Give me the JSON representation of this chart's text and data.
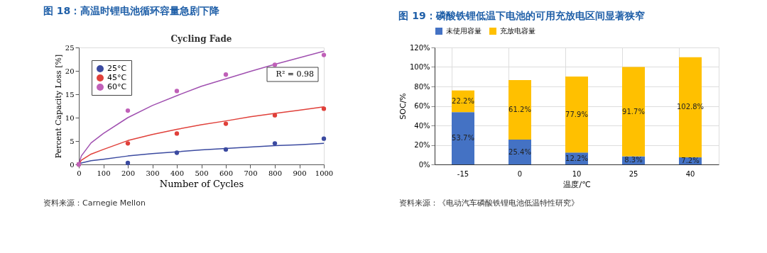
{
  "chart_data": [
    {
      "type": "scatter",
      "title": "图 18：高温时锂电池循环容量急剧下降",
      "subtitle": "Cycling Fade",
      "xlabel": "Number of Cycles",
      "ylabel": "Percent Capacity Loss [%]",
      "x": [
        0,
        200,
        400,
        600,
        800,
        1000
      ],
      "series": [
        {
          "name": "25°C",
          "color": "#3b4aa0",
          "values": [
            0,
            0.3,
            2.5,
            3.2,
            4.5,
            5.5
          ]
        },
        {
          "name": "45°C",
          "color": "#e0403a",
          "values": [
            0,
            4.5,
            6.6,
            8.7,
            10.5,
            11.9
          ]
        },
        {
          "name": "60°C",
          "color": "#c060b8",
          "values": [
            0,
            11.5,
            15.7,
            19.2,
            21.3,
            23.4
          ]
        },
        {
          "type": "line",
          "marker": "none",
          "color": "#3b4aa0",
          "x": [
            0,
            10,
            50,
            100,
            200,
            300,
            400,
            500,
            600,
            700,
            800,
            900,
            1000
          ],
          "values": [
            0,
            0.3,
            0.8,
            1.1,
            1.8,
            2.3,
            2.7,
            3.1,
            3.4,
            3.7,
            4.0,
            4.2,
            4.5
          ]
        },
        {
          "type": "line",
          "marker": "none",
          "color": "#e0403a",
          "x": [
            0,
            10,
            50,
            100,
            200,
            300,
            400,
            500,
            600,
            700,
            800,
            900,
            1000
          ],
          "values": [
            0,
            0.9,
            2.2,
            3.2,
            5.1,
            6.4,
            7.5,
            8.5,
            9.3,
            10.2,
            10.9,
            11.6,
            12.3
          ]
        },
        {
          "type": "line",
          "marker": "none",
          "color": "#a050b0",
          "x": [
            0,
            10,
            50,
            100,
            200,
            300,
            400,
            500,
            600,
            700,
            800,
            900,
            1000
          ],
          "values": [
            0,
            1.8,
            4.6,
            6.6,
            10.0,
            12.6,
            14.7,
            16.7,
            18.3,
            19.9,
            21.4,
            22.8,
            24.2
          ]
        }
      ],
      "xlim": [
        0,
        1000
      ],
      "xticks": [
        0,
        100,
        200,
        300,
        400,
        500,
        600,
        700,
        800,
        900,
        1000
      ],
      "ylim": [
        0,
        25
      ],
      "yticks": [
        0,
        5,
        10,
        15,
        20,
        25
      ],
      "marker": "circle",
      "legend": "top left",
      "grid": false,
      "annotations": [
        "R² = 0.98",
        "资料来源：Carnegie Mellon"
      ]
    },
    {
      "type": "bar",
      "stacked": true,
      "title": "图 19：磷酸铁锂低温下电池的可用充放电区间显著狭窄",
      "xlabel": "温度/℃",
      "ylabel": "SOC/%",
      "categories": [
        "-15",
        "0",
        "10",
        "25",
        "40"
      ],
      "series": [
        {
          "name": "未使用容量",
          "color": "#4472c4",
          "values": [
            53.7,
            25.4,
            12.2,
            8.3,
            7.2
          ],
          "value_labels": [
            "53.7%",
            "25.4%",
            "12.2%",
            "8.3%",
            "7.2%"
          ]
        },
        {
          "name": "充放电容量",
          "color": "#ffc000",
          "values": [
            22.2,
            61.2,
            77.9,
            91.7,
            102.8
          ],
          "value_labels": [
            "22.2%",
            "61.2%",
            "77.9%",
            "91.7%",
            "102.8%"
          ]
        }
      ],
      "ylim": [
        0,
        120
      ],
      "yticks": [
        {
          "value": 0,
          "label": "0%"
        },
        {
          "value": 20,
          "label": "20%"
        },
        {
          "value": 40,
          "label": "40%"
        },
        {
          "value": 60,
          "label": "60%"
        },
        {
          "value": 80,
          "label": "80%"
        },
        {
          "value": 100,
          "label": "100%"
        },
        {
          "value": 120,
          "label": "120%"
        }
      ],
      "grid": true,
      "legend": "top",
      "annotations": [
        "资料来源：《电动汽车磷酸铁锂电池低温特性研究》"
      ]
    }
  ]
}
